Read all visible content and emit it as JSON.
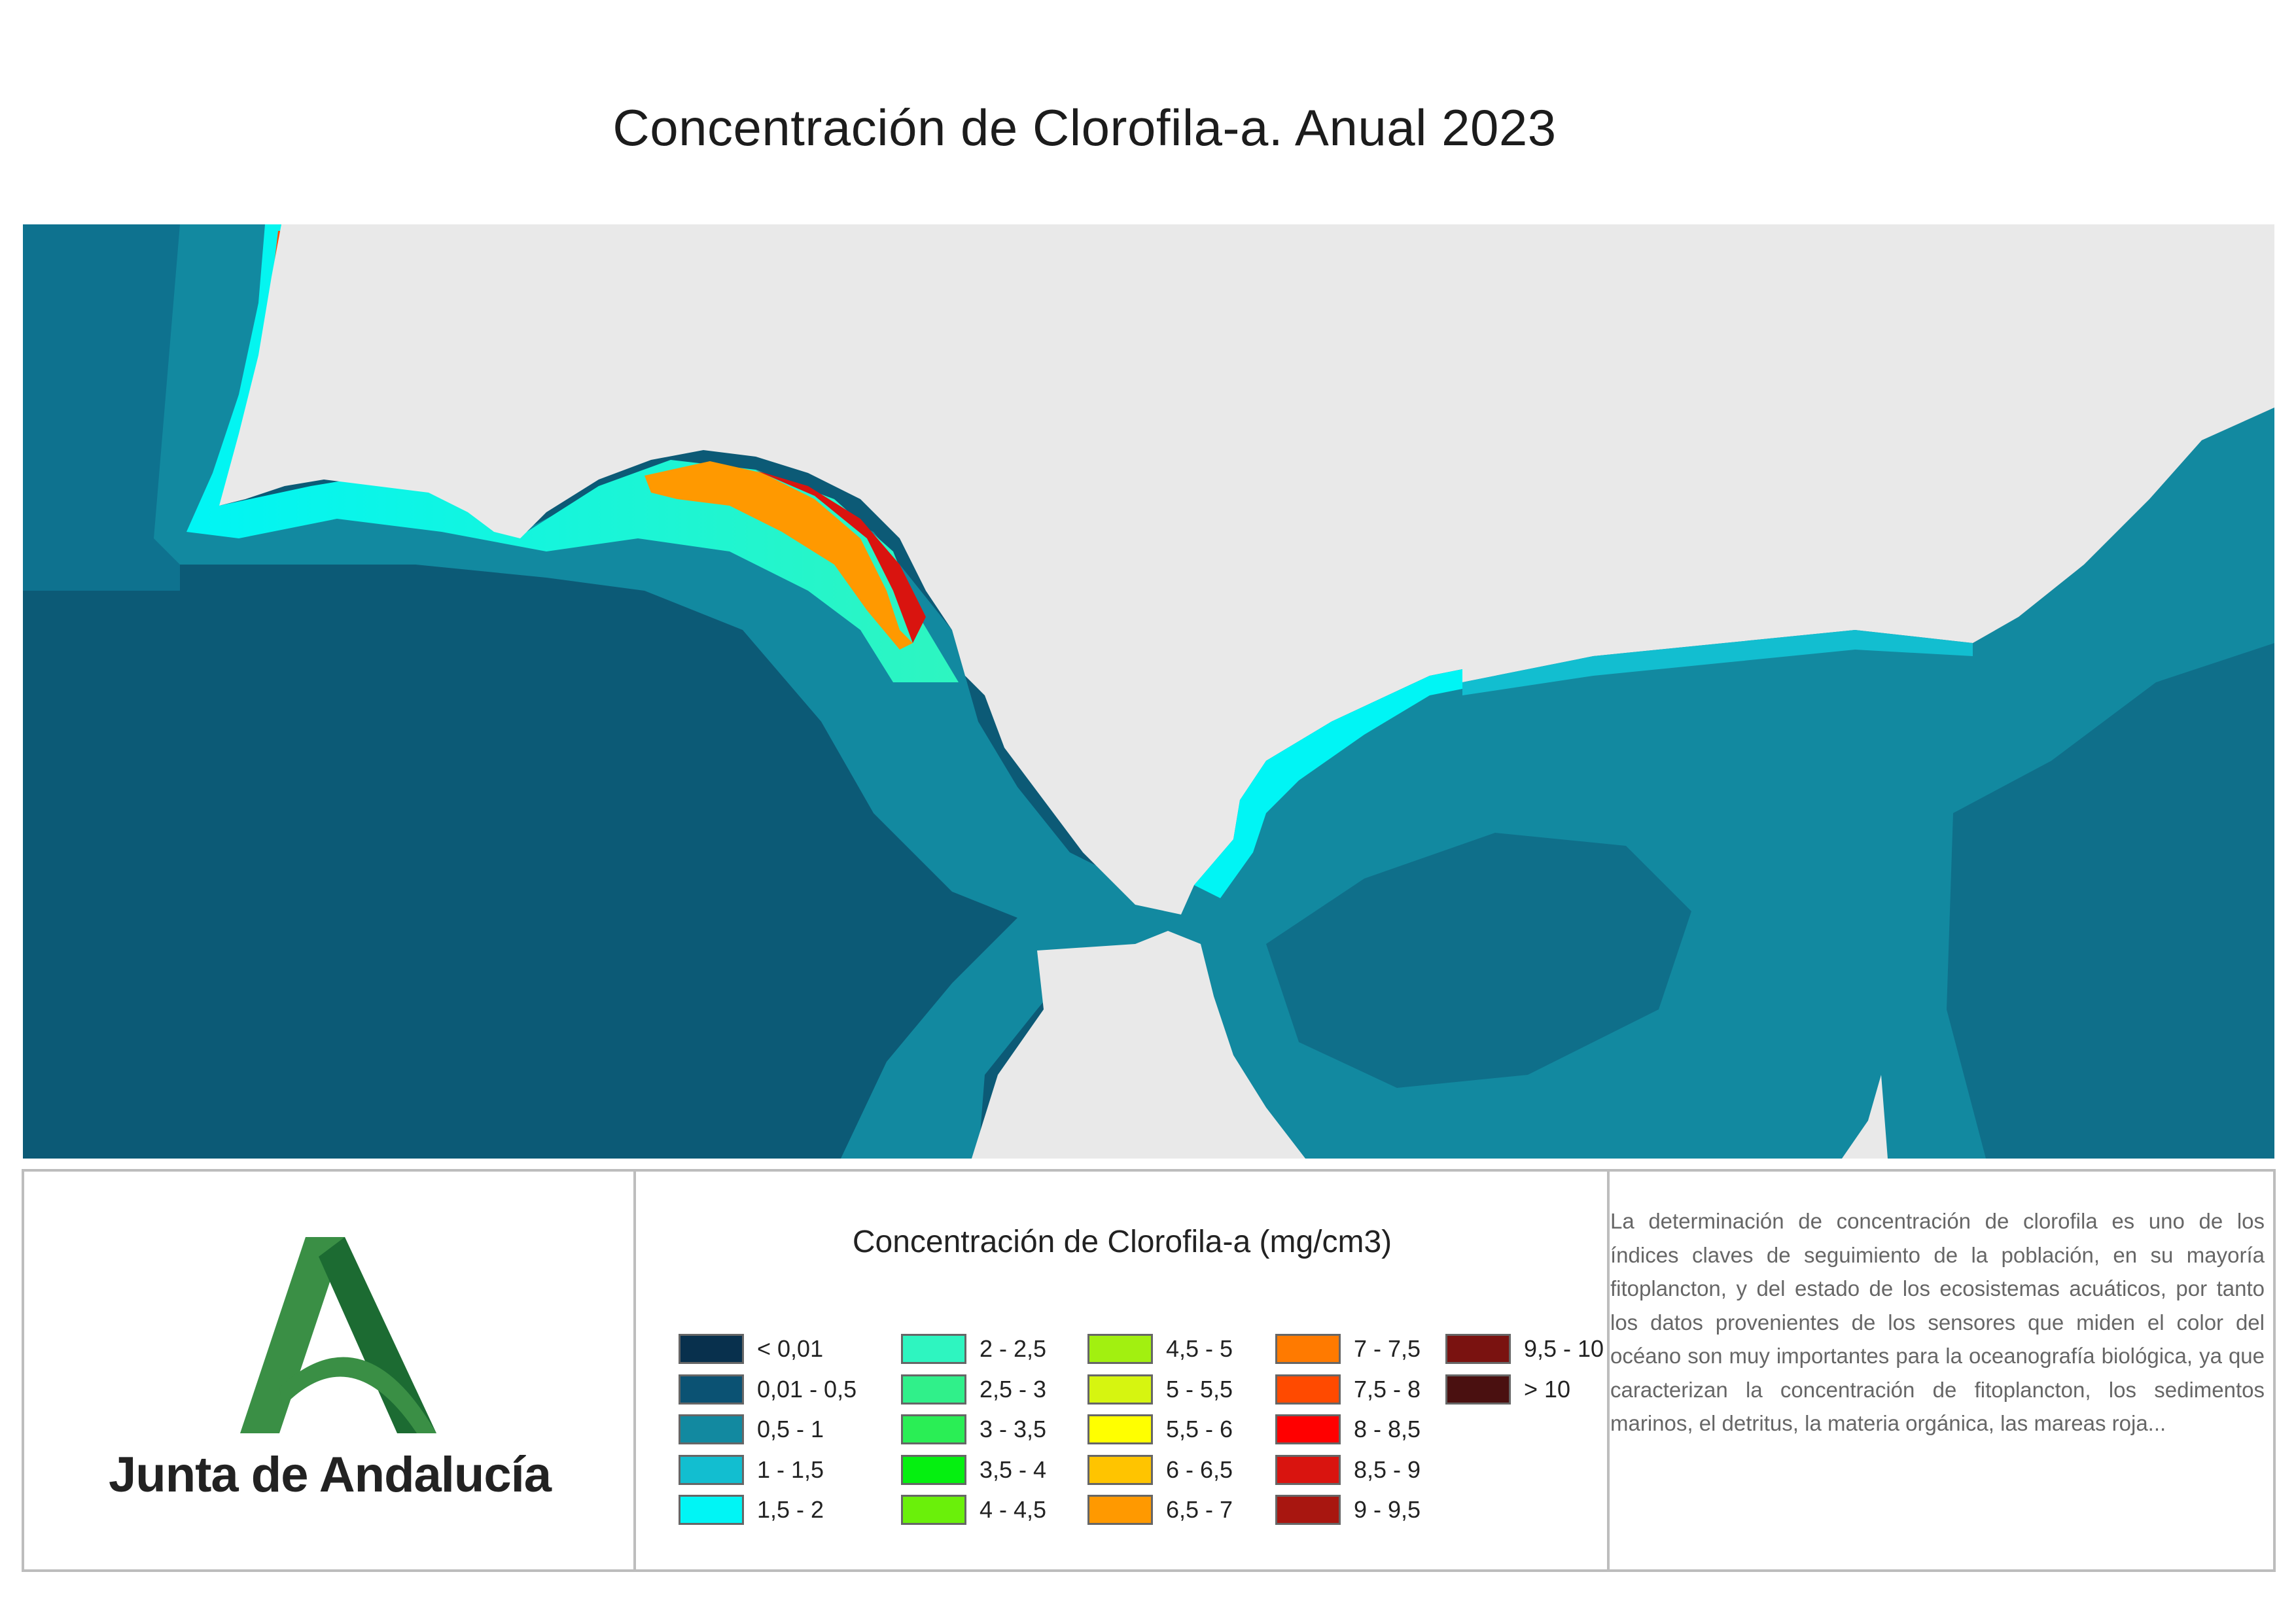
{
  "title": "Concentración de Clorofila-a. Anual 2023",
  "logo": {
    "text": "Junta de Andalucía",
    "colors": {
      "green_light": "#3a8f45",
      "green_dark": "#1c6b32"
    }
  },
  "legend": {
    "title": "Concentración de Clorofila-a (mg/cm3)",
    "items": [
      {
        "label": "< 0,01",
        "color": "#08304d"
      },
      {
        "label": "0,01 - 0,5",
        "color": "#0b5273"
      },
      {
        "label": "0,5 - 1",
        "color": "#1289a0"
      },
      {
        "label": "1 - 1,5",
        "color": "#12bed0"
      },
      {
        "label": "1,5 - 2",
        "color": "#00f5f5"
      },
      {
        "label": "2 - 2,5",
        "color": "#2ef5c0"
      },
      {
        "label": "2,5 - 3",
        "color": "#30f08a"
      },
      {
        "label": "3 - 3,5",
        "color": "#2aee55"
      },
      {
        "label": "3,5 - 4",
        "color": "#05f010"
      },
      {
        "label": "4 - 4,5",
        "color": "#6af00a"
      },
      {
        "label": "4,5 - 5",
        "color": "#a2f010"
      },
      {
        "label": "5 - 5,5",
        "color": "#d6f510"
      },
      {
        "label": "5,5 - 6",
        "color": "#ffff00"
      },
      {
        "label": "6 - 6,5",
        "color": "#ffc400"
      },
      {
        "label": "6,5 - 7",
        "color": "#ff9900"
      },
      {
        "label": "7 - 7,5",
        "color": "#ff7a00"
      },
      {
        "label": "7,5 - 8",
        "color": "#ff4a00"
      },
      {
        "label": "8 - 8,5",
        "color": "#ff0000"
      },
      {
        "label": "8,5 - 9",
        "color": "#d9140f"
      },
      {
        "label": "9 - 9,5",
        "color": "#a81610"
      },
      {
        "label": "9,5 - 10",
        "color": "#7a1210"
      },
      {
        "label": "> 10",
        "color": "#4a1010"
      }
    ]
  },
  "description": "La determinación de concentración de clorofila es uno de los índices claves de seguimiento de la población, en su mayoría fitoplancton, y del estado de los ecosistemas acuáticos, por tanto los datos provenientes de los sensores que miden el color del océano son muy importantes para la oceanografía biológica, ya que caracterizan la concentración de fitoplancton, los sedimentos marinos, el detritus, la materia orgánica, las mareas roja...",
  "map_colors": {
    "land": "#e9e9e9",
    "deep_sea": "#0c5a76",
    "mid_sea": "#1289a0",
    "med_dark": "#0f6f8a"
  }
}
